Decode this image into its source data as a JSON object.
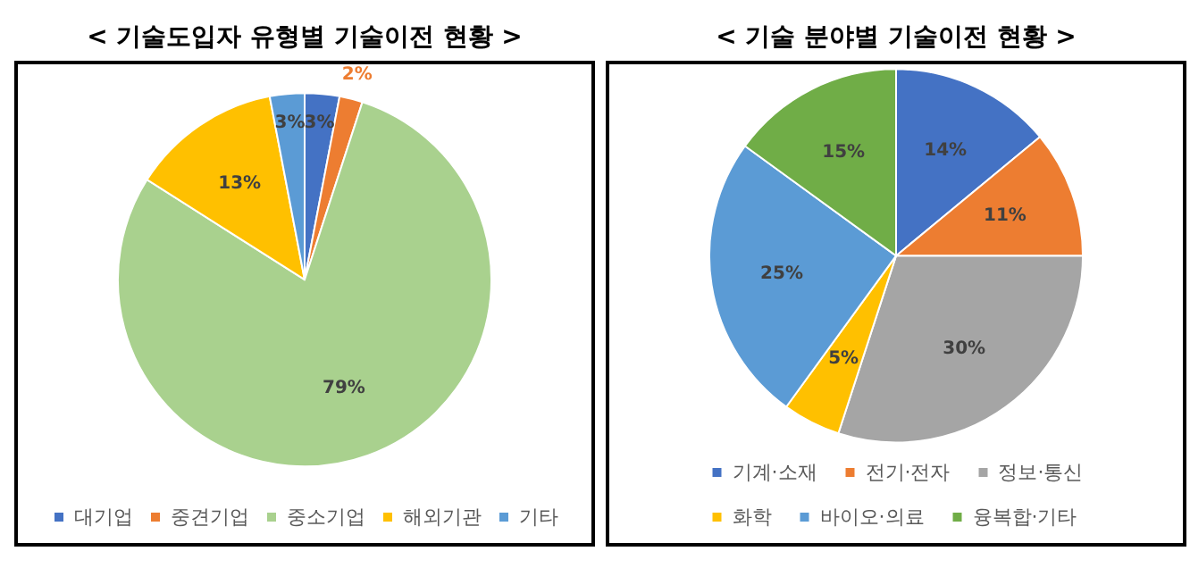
{
  "chart_data": [
    {
      "type": "pie",
      "title": "< 기술도입자 유형별 기술이전 현황 >",
      "categories": [
        "대기업",
        "중견기업",
        "중소기업",
        "해외기관",
        "기타"
      ],
      "values": [
        3,
        2,
        79,
        13,
        3
      ],
      "value_labels": [
        "3%",
        "2%",
        "79%",
        "13%",
        "3%"
      ],
      "colors": [
        "#4472c4",
        "#ed7d31",
        "#a9d18e",
        "#ffc000",
        "#5b9bd5"
      ],
      "legend": "bottom"
    },
    {
      "type": "pie",
      "title": "< 기술 분야별 기술이전 현황 >",
      "categories": [
        "기계·소재",
        "전기·전자",
        "정보·통신",
        "화학",
        "바이오·의료",
        "융복합·기타"
      ],
      "values": [
        14,
        11,
        30,
        5,
        25,
        15
      ],
      "value_labels": [
        "14%",
        "11%",
        "30%",
        "5%",
        "25%",
        "15%"
      ],
      "colors": [
        "#4472c4",
        "#ed7d31",
        "#a5a5a5",
        "#ffc000",
        "#5b9bd5",
        "#70ad47"
      ],
      "legend": "bottom"
    }
  ]
}
